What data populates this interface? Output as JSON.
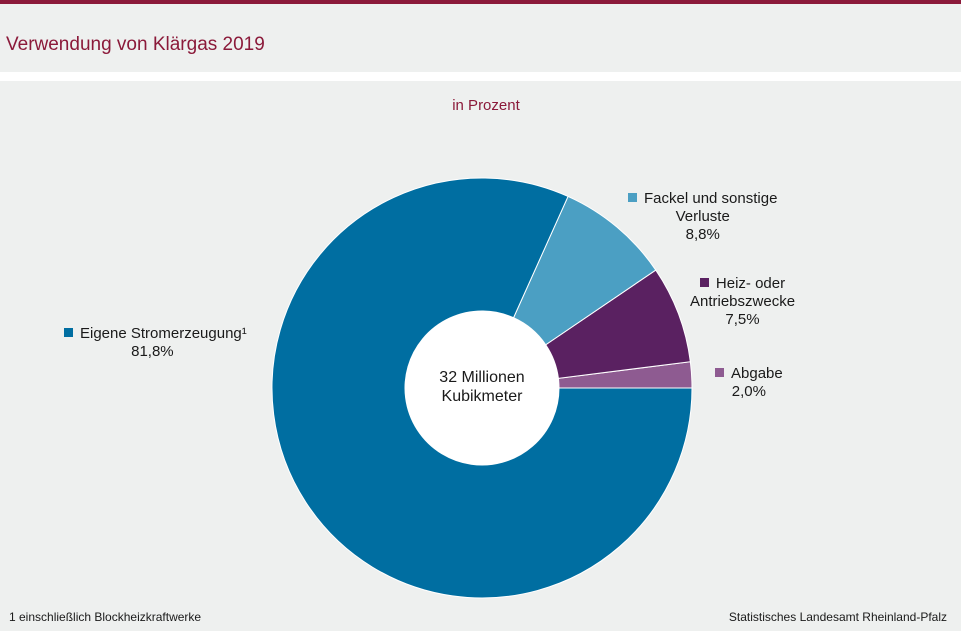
{
  "header": {
    "title": "Verwendung von Klärgas 2019",
    "subtitle": "in Prozent"
  },
  "colors": {
    "brand": "#8b1a3a",
    "stromerzeugung": "#006ea1",
    "fackel": "#4b9fc3",
    "heiz": "#5a2161",
    "abgabe": "#8e5b91"
  },
  "chart_data": {
    "type": "pie",
    "title": "Verwendung von Klärgas 2019",
    "subtitle": "in Prozent",
    "center_label": [
      "32 Millionen",
      "Kubikmeter"
    ],
    "slices": [
      {
        "label": "Eigene Stromerzeugung¹",
        "value": 81.8,
        "value_label": "81,8%",
        "color": "#006ea1"
      },
      {
        "label": "Fackel und sonstige Verluste",
        "value": 8.8,
        "value_label": "8,8%",
        "color": "#4b9fc3"
      },
      {
        "label": "Heiz- oder Antriebszwecke",
        "value": 7.5,
        "value_label": "7,5%",
        "color": "#5a2161"
      },
      {
        "label": "Abgabe",
        "value": 2.0,
        "value_label": "2,0%",
        "color": "#8e5b91"
      }
    ]
  },
  "legend": {
    "strom": {
      "line1": "Eigene Stromerzeugung¹",
      "value": "81,8%"
    },
    "fackel": {
      "line1": "Fackel und sonstige",
      "line2": "Verluste",
      "value": "8,8%"
    },
    "heiz": {
      "line1": "Heiz- oder",
      "line2": "Antriebszwecke",
      "value": "7,5%"
    },
    "abgabe": {
      "line1": "Abgabe",
      "value": "2,0%"
    }
  },
  "center": {
    "line1": "32 Millionen",
    "line2": "Kubikmeter"
  },
  "footer": {
    "footnote": "1 einschließlich Blockheizkraftwerke",
    "source": "Statistisches Landesamt Rheinland-Pfalz"
  }
}
